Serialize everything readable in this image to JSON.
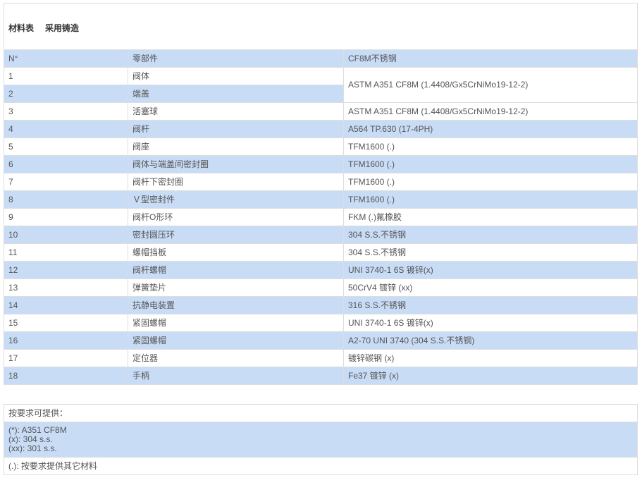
{
  "title": {
    "part1": "材料表",
    "part2": "采用铸造"
  },
  "header": {
    "no": "N°",
    "part": "零部件",
    "material": "CF8M不锈钢"
  },
  "rows": [
    {
      "no": "1",
      "part": "阀体",
      "material": "ASTM A351 CF8M (1.4408/Gx5CrNiMo19-12-2)"
    },
    {
      "no": "2",
      "part": "端盖",
      "material": ""
    },
    {
      "no": "3",
      "part": "活塞球",
      "material": "ASTM A351 CF8M (1.4408/Gx5CrNiMo19-12-2)"
    },
    {
      "no": "4",
      "part": "阀杆",
      "material": "A564 TP.630 (17-4PH)"
    },
    {
      "no": "5",
      "part": "阀座",
      "material": "TFM1600 (.)"
    },
    {
      "no": "6",
      "part": "阀体与端盖间密封圈",
      "material": "TFM1600 (.)"
    },
    {
      "no": "7",
      "part": "阀杆下密封圈",
      "material": "TFM1600 (.)"
    },
    {
      "no": "8",
      "part": "Ｖ型密封件",
      "material": "TFM1600 (.)"
    },
    {
      "no": "9",
      "part": "阀杆O形环",
      "material": "FKM (.)氟橡胶"
    },
    {
      "no": "10",
      "part": "密封圆压环",
      "material": "304 S.S.不锈钢"
    },
    {
      "no": "11",
      "part": "螺帽挡板",
      "material": "304 S.S.不锈钢"
    },
    {
      "no": "12",
      "part": "阀杆螺帽",
      "material": "UNI 3740-1 6S 镀锌(x)"
    },
    {
      "no": "13",
      "part": "弹簧垫片",
      "material": "50CrV4 镀锌 (xx)"
    },
    {
      "no": "14",
      "part": "抗静电装置",
      "material": "316 S.S.不锈钢"
    },
    {
      "no": "15",
      "part": "紧固螺帽",
      "material": "UNI 3740-1 6S 镀锌(x)"
    },
    {
      "no": "16",
      "part": "紧固螺帽",
      "material": "A2-70 UNI 3740 (304 S.S.不锈钢)"
    },
    {
      "no": "17",
      "part": "定位器",
      "material": "镀锌碳钢  (x)"
    },
    {
      "no": "18",
      "part": "手柄",
      "material": "Fe37 镀锌 (x)"
    }
  ],
  "notes": {
    "heading": "按要求可提供：",
    "lines": [
      "(*): A351 CF8M",
      "(x): 304 s.s.",
      "(xx): 301 s.s."
    ],
    "footer": "(.): 按要求提供其它材料"
  },
  "colors": {
    "row_highlight": "#c9dcf6",
    "border": "#dddddd"
  }
}
